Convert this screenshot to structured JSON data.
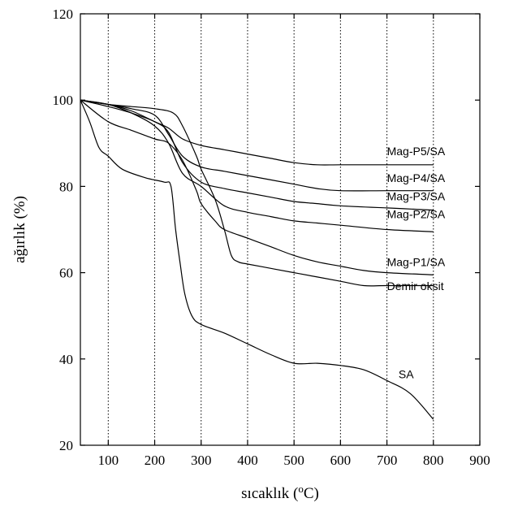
{
  "chart_data": {
    "type": "line",
    "xlabel_main": "sıcaklık (",
    "xlabel_sup": "o",
    "xlabel_tail": "C)",
    "ylabel": "ağırlık (%)",
    "xlim": [
      40,
      900
    ],
    "ylim": [
      20,
      120
    ],
    "xticks": [
      100,
      200,
      300,
      400,
      500,
      600,
      700,
      800,
      900
    ],
    "yticks": [
      20,
      40,
      60,
      80,
      100,
      120
    ],
    "grid_x": [
      100,
      200,
      300,
      400,
      500,
      600,
      700,
      800
    ],
    "series": [
      {
        "name": "Mag-P5/SA",
        "points": [
          [
            40,
            100
          ],
          [
            100,
            99
          ],
          [
            150,
            97.5
          ],
          [
            200,
            95
          ],
          [
            230,
            93.5
          ],
          [
            260,
            91
          ],
          [
            300,
            89.5
          ],
          [
            350,
            88.5
          ],
          [
            400,
            87.5
          ],
          [
            450,
            86.5
          ],
          [
            500,
            85.5
          ],
          [
            550,
            85
          ],
          [
            600,
            85
          ],
          [
            700,
            85
          ],
          [
            800,
            85
          ]
        ]
      },
      {
        "name": "Mag-P4/SA",
        "points": [
          [
            40,
            100
          ],
          [
            100,
            99
          ],
          [
            150,
            98
          ],
          [
            200,
            96.5
          ],
          [
            230,
            92
          ],
          [
            260,
            87
          ],
          [
            300,
            84.5
          ],
          [
            350,
            83.5
          ],
          [
            400,
            82.5
          ],
          [
            450,
            81.5
          ],
          [
            500,
            80.5
          ],
          [
            550,
            79.5
          ],
          [
            600,
            79
          ],
          [
            700,
            79
          ],
          [
            800,
            79
          ]
        ]
      },
      {
        "name": "Mag-P3/SA",
        "points": [
          [
            40,
            100
          ],
          [
            100,
            98.5
          ],
          [
            150,
            97
          ],
          [
            200,
            95
          ],
          [
            230,
            92.5
          ],
          [
            260,
            85.5
          ],
          [
            300,
            81
          ],
          [
            350,
            79.5
          ],
          [
            400,
            78.5
          ],
          [
            450,
            77.5
          ],
          [
            500,
            76.5
          ],
          [
            550,
            76
          ],
          [
            600,
            75.5
          ],
          [
            700,
            75
          ],
          [
            800,
            74.5
          ]
        ]
      },
      {
        "name": "Mag-P2/SA",
        "points": [
          [
            40,
            100
          ],
          [
            100,
            99
          ],
          [
            150,
            97
          ],
          [
            200,
            94
          ],
          [
            230,
            90
          ],
          [
            260,
            83
          ],
          [
            300,
            80
          ],
          [
            350,
            75.5
          ],
          [
            400,
            74
          ],
          [
            450,
            73
          ],
          [
            500,
            72
          ],
          [
            550,
            71.5
          ],
          [
            600,
            71
          ],
          [
            700,
            70
          ],
          [
            800,
            69.5
          ]
        ]
      },
      {
        "name": "Mag-P1/SA",
        "points": [
          [
            40,
            100
          ],
          [
            100,
            95
          ],
          [
            150,
            93
          ],
          [
            200,
            91
          ],
          [
            230,
            90
          ],
          [
            260,
            86
          ],
          [
            290,
            79
          ],
          [
            300,
            76
          ],
          [
            330,
            72
          ],
          [
            350,
            70
          ],
          [
            400,
            68
          ],
          [
            450,
            66
          ],
          [
            500,
            64
          ],
          [
            550,
            62.5
          ],
          [
            600,
            61.5
          ],
          [
            650,
            60.5
          ],
          [
            700,
            60
          ],
          [
            800,
            59.5
          ]
        ]
      },
      {
        "name": "Demir oksit",
        "points": [
          [
            40,
            100
          ],
          [
            100,
            99
          ],
          [
            150,
            98.5
          ],
          [
            200,
            98
          ],
          [
            240,
            97
          ],
          [
            260,
            94
          ],
          [
            290,
            87
          ],
          [
            300,
            84
          ],
          [
            330,
            77
          ],
          [
            350,
            70
          ],
          [
            365,
            64
          ],
          [
            380,
            62.5
          ],
          [
            400,
            62
          ],
          [
            450,
            61
          ],
          [
            500,
            60
          ],
          [
            550,
            59
          ],
          [
            600,
            58
          ],
          [
            650,
            57
          ],
          [
            700,
            57
          ],
          [
            800,
            57
          ]
        ]
      },
      {
        "name": "SA",
        "points": [
          [
            40,
            100
          ],
          [
            60,
            95
          ],
          [
            80,
            89
          ],
          [
            100,
            87
          ],
          [
            130,
            84
          ],
          [
            180,
            82
          ],
          [
            220,
            81
          ],
          [
            235,
            80
          ],
          [
            245,
            70
          ],
          [
            255,
            62
          ],
          [
            265,
            55
          ],
          [
            280,
            50
          ],
          [
            300,
            48
          ],
          [
            350,
            46
          ],
          [
            400,
            43.5
          ],
          [
            450,
            41
          ],
          [
            500,
            39
          ],
          [
            550,
            39
          ],
          [
            600,
            38.5
          ],
          [
            650,
            37.5
          ],
          [
            700,
            35
          ],
          [
            750,
            32
          ],
          [
            800,
            26
          ]
        ]
      }
    ],
    "series_labels": [
      {
        "text": "Mag-P5/SA",
        "x": 700,
        "y": 87.2
      },
      {
        "text": "Mag-P4/SA",
        "x": 700,
        "y": 81
      },
      {
        "text": "Mag-P3/SA",
        "x": 700,
        "y": 76.8
      },
      {
        "text": "Mag-P2/SA",
        "x": 700,
        "y": 72.6
      },
      {
        "text": "Mag-P1/SA",
        "x": 700,
        "y": 61.5
      },
      {
        "text": "Demir oksit",
        "x": 700,
        "y": 56
      },
      {
        "text": "SA",
        "x": 725,
        "y": 35.5
      }
    ]
  }
}
